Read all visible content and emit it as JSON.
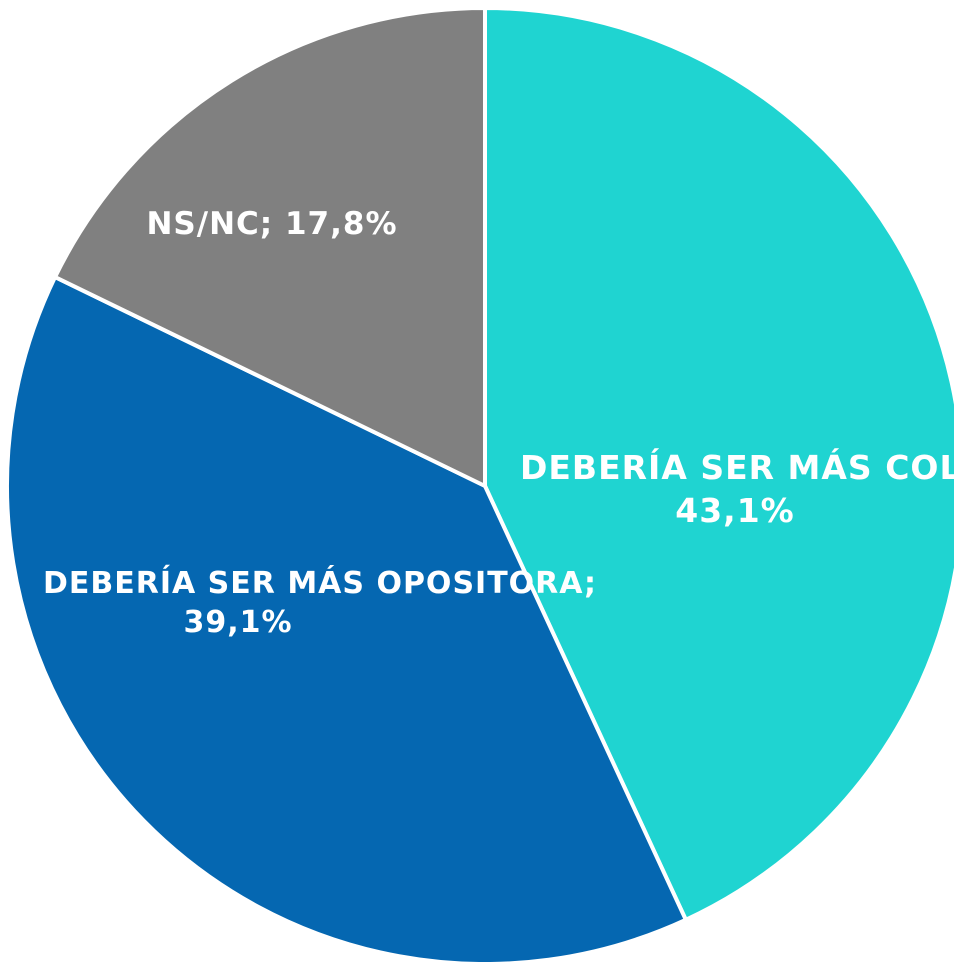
{
  "chart_data": {
    "type": "pie",
    "categories": [
      "DEBERÍA SER MÁS COLABORATIVA;",
      "DEBERÍA SER MÁS OPOSITORA;",
      "NS/NC;"
    ],
    "values": [
      43.1,
      39.1,
      17.8
    ],
    "value_labels": [
      "43,1%",
      "39,1%",
      "17,8%"
    ],
    "colors": [
      "#1fd4d1",
      "#0567b1",
      "#808080"
    ]
  }
}
